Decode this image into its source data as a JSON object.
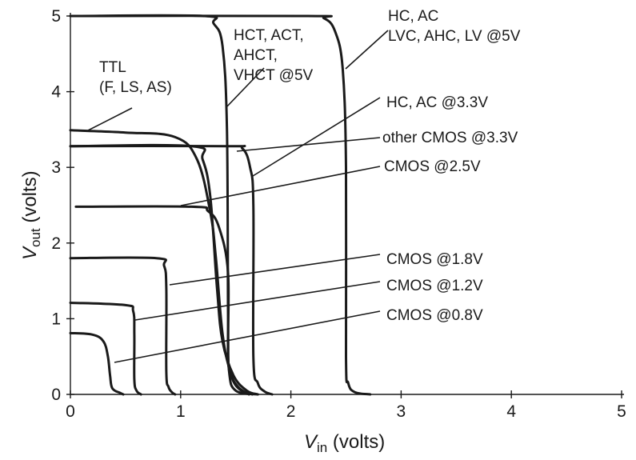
{
  "chart_data": {
    "type": "line",
    "title": "",
    "xlabel": {
      "main": "V",
      "sub": "in",
      "rest": " (volts)"
    },
    "ylabel": {
      "main": "V",
      "sub": "out",
      "rest": " (volts)"
    },
    "xlim": [
      0,
      5
    ],
    "ylim": [
      0,
      5
    ],
    "xticks": [
      "0",
      "1",
      "2",
      "3",
      "4",
      "5"
    ],
    "yticks": [
      "0",
      "1",
      "2",
      "3",
      "4",
      "5"
    ],
    "grid": false,
    "series": [
      {
        "name": "",
        "points": [
          [
            0,
            5.0
          ],
          [
            1.2,
            5.0
          ],
          [
            1.3,
            4.9
          ],
          [
            1.38,
            4.6
          ],
          [
            1.42,
            3.5
          ],
          [
            1.43,
            1.0
          ],
          [
            1.44,
            0.3
          ],
          [
            1.5,
            0.05
          ],
          [
            1.7,
            0.0
          ]
        ]
      },
      {
        "name": "",
        "points": [
          [
            0,
            5.0
          ],
          [
            2.15,
            5.0
          ],
          [
            2.3,
            4.97
          ],
          [
            2.4,
            4.8
          ],
          [
            2.47,
            4.3
          ],
          [
            2.5,
            3.0
          ],
          [
            2.5,
            0.5
          ],
          [
            2.52,
            0.15
          ],
          [
            2.58,
            0.03
          ],
          [
            2.72,
            0.0
          ]
        ]
      },
      {
        "name": "",
        "points": [
          [
            0,
            3.49
          ],
          [
            0.5,
            3.46
          ],
          [
            0.95,
            3.4
          ],
          [
            1.15,
            3.1
          ],
          [
            1.27,
            2.4
          ],
          [
            1.32,
            1.8
          ],
          [
            1.38,
            0.8
          ],
          [
            1.45,
            0.3
          ],
          [
            1.52,
            0.1
          ],
          [
            1.62,
            0.0
          ]
        ]
      },
      {
        "name": "",
        "points": [
          [
            0,
            3.28
          ],
          [
            1.1,
            3.28
          ],
          [
            1.2,
            3.1
          ],
          [
            1.27,
            2.6
          ],
          [
            1.33,
            1.4
          ],
          [
            1.38,
            0.7
          ],
          [
            1.48,
            0.25
          ],
          [
            1.6,
            0.05
          ],
          [
            1.7,
            0.0
          ]
        ]
      },
      {
        "name": "",
        "points": [
          [
            0,
            3.28
          ],
          [
            1.42,
            3.28
          ],
          [
            1.56,
            3.25
          ],
          [
            1.63,
            3.0
          ],
          [
            1.66,
            2.5
          ],
          [
            1.66,
            0.5
          ],
          [
            1.7,
            0.15
          ],
          [
            1.76,
            0.04
          ],
          [
            1.83,
            0.0
          ]
        ]
      },
      {
        "name": "",
        "points": [
          [
            0.05,
            2.48
          ],
          [
            1.1,
            2.48
          ],
          [
            1.25,
            2.42
          ],
          [
            1.35,
            2.2
          ],
          [
            1.43,
            1.6
          ],
          [
            1.43,
            0.5
          ],
          [
            1.47,
            0.2
          ],
          [
            1.55,
            0.05
          ],
          [
            1.65,
            0.0
          ]
        ]
      },
      {
        "name": "",
        "points": [
          [
            0,
            1.8
          ],
          [
            0.78,
            1.8
          ],
          [
            0.85,
            1.7
          ],
          [
            0.87,
            1.4
          ],
          [
            0.87,
            0.3
          ],
          [
            0.89,
            0.1
          ],
          [
            0.92,
            0.03
          ],
          [
            0.95,
            0.0
          ]
        ]
      },
      {
        "name": "",
        "points": [
          [
            0,
            1.21
          ],
          [
            0.5,
            1.18
          ],
          [
            0.57,
            1.1
          ],
          [
            0.58,
            0.8
          ],
          [
            0.58,
            0.2
          ],
          [
            0.6,
            0.05
          ],
          [
            0.64,
            0.0
          ]
        ]
      },
      {
        "name": "",
        "points": [
          [
            0,
            0.81
          ],
          [
            0.2,
            0.79
          ],
          [
            0.3,
            0.7
          ],
          [
            0.34,
            0.5
          ],
          [
            0.36,
            0.25
          ],
          [
            0.38,
            0.08
          ],
          [
            0.45,
            0.02
          ],
          [
            0.48,
            0.0
          ]
        ]
      }
    ],
    "annotations": [
      {
        "id": "ttl",
        "lines": [
          "TTL",
          "(F, LS, AS)"
        ]
      },
      {
        "id": "hct",
        "lines": [
          "HCT, ACT,",
          "AHCT,",
          "VHCT @5V"
        ]
      },
      {
        "id": "hc5",
        "lines": [
          "HC, AC",
          "LVC, AHC, LV @5V"
        ]
      },
      {
        "id": "hc33",
        "lines": [
          "HC, AC @3.3V"
        ]
      },
      {
        "id": "cmos33",
        "lines": [
          "other CMOS @3.3V"
        ]
      },
      {
        "id": "cmos25",
        "lines": [
          "CMOS @2.5V"
        ]
      },
      {
        "id": "cmos18",
        "lines": [
          "CMOS @1.8V"
        ]
      },
      {
        "id": "cmos12",
        "lines": [
          "CMOS @1.2V"
        ]
      },
      {
        "id": "cmos08",
        "lines": [
          "CMOS @0.8V"
        ]
      }
    ]
  }
}
